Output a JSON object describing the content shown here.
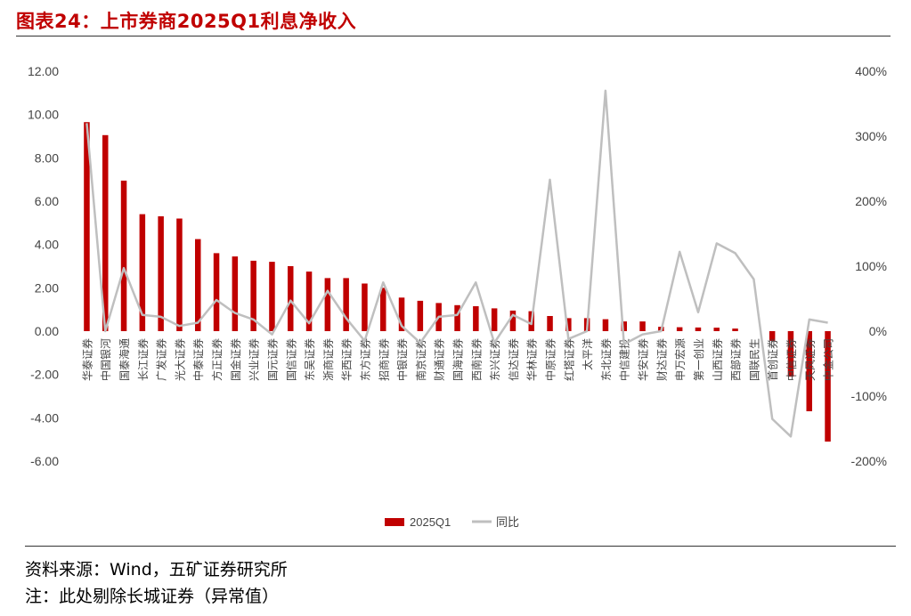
{
  "title": "图表24：上市券商2025Q1利息净收入",
  "footer": {
    "source": "资料来源：Wind，五矿证券研究所",
    "note": "注：此处剔除长城证券（异常值）"
  },
  "colors": {
    "bar": "#c00000",
    "line": "#bfbfbf",
    "title": "#c00000"
  },
  "chart_data": {
    "type": "bar",
    "title": "",
    "categories": [
      "华泰证券",
      "中国银河",
      "国泰海通",
      "长江证券",
      "广发证券",
      "光大证券",
      "中泰证券",
      "方正证券",
      "国金证券",
      "兴业证券",
      "国元证券",
      "国信证券",
      "东吴证券",
      "浙商证券",
      "华西证券",
      "东方证券",
      "招商证券",
      "中银证券",
      "南京证券",
      "财通证券",
      "国海证券",
      "西南证券",
      "东兴证券",
      "信达证券",
      "华林证券",
      "中原证券",
      "红塔证券",
      "太平洋",
      "东北证券",
      "中信建投",
      "华安证券",
      "财达证券",
      "申万宏源",
      "第一创业",
      "山西证券",
      "西部证券",
      "国联民生",
      "首创证券",
      "中信证券",
      "天风证券",
      "中金公司"
    ],
    "series": [
      {
        "name": "2025Q1",
        "axis": "left",
        "type": "bar",
        "values": [
          9.65,
          9.05,
          6.95,
          5.4,
          5.3,
          5.2,
          4.25,
          3.6,
          3.45,
          3.25,
          3.2,
          3.0,
          2.75,
          2.45,
          2.45,
          2.2,
          2.0,
          1.55,
          1.4,
          1.3,
          1.2,
          1.15,
          1.05,
          0.95,
          0.92,
          0.7,
          0.6,
          0.6,
          0.55,
          0.45,
          0.45,
          0.2,
          0.18,
          0.17,
          0.16,
          0.12,
          0.0,
          -0.45,
          -2.1,
          -3.7,
          -5.1
        ]
      },
      {
        "name": "同比",
        "axis": "right",
        "type": "line",
        "values": [
          320,
          0,
          97,
          25,
          22,
          8,
          13,
          48,
          28,
          18,
          -5,
          47,
          12,
          62,
          20,
          -15,
          75,
          8,
          -18,
          22,
          25,
          75,
          -18,
          25,
          11,
          233,
          -12,
          0,
          370,
          -20,
          -5,
          0,
          122,
          29,
          135,
          120,
          80,
          -135,
          -162,
          18,
          13
        ]
      }
    ],
    "ylim": [
      -6,
      12
    ],
    "yticks": [
      "12.00",
      "10.00",
      "8.00",
      "6.00",
      "4.00",
      "2.00",
      "0.00",
      "-2.00",
      "-4.00",
      "-6.00"
    ],
    "y2lim": [
      -200,
      400
    ],
    "y2ticks": [
      "400%",
      "300%",
      "200%",
      "100%",
      "0%",
      "-100%",
      "-200%"
    ],
    "legend": [
      "2025Q1",
      "同比"
    ],
    "legend_position": "bottom"
  }
}
